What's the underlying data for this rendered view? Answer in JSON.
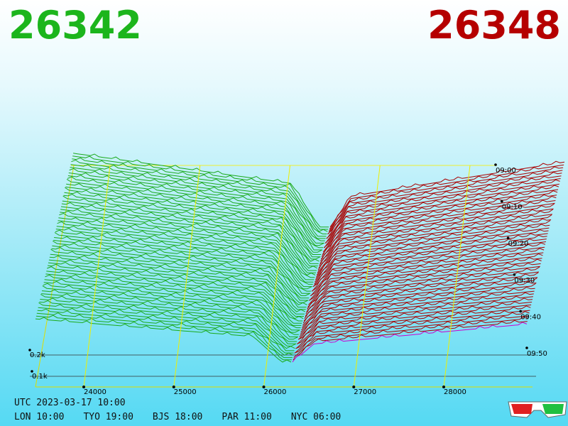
{
  "header": {
    "bid": "26342",
    "ask": "26348"
  },
  "axes": {
    "price_ticks": [
      24000,
      25000,
      26000,
      27000,
      28000
    ],
    "time_ticks": [
      "09:00",
      "09:10",
      "09:20",
      "09:30",
      "09:40",
      "09:50"
    ],
    "depth_ticks": [
      "0.2k",
      "0.1k"
    ]
  },
  "footer": {
    "utc": "UTC 2023-03-17 10:00",
    "clocks": [
      "LON 10:00",
      "TYO 19:00",
      "BJS 18:00",
      "PAR 11:00",
      "NYC 06:00"
    ]
  }
}
